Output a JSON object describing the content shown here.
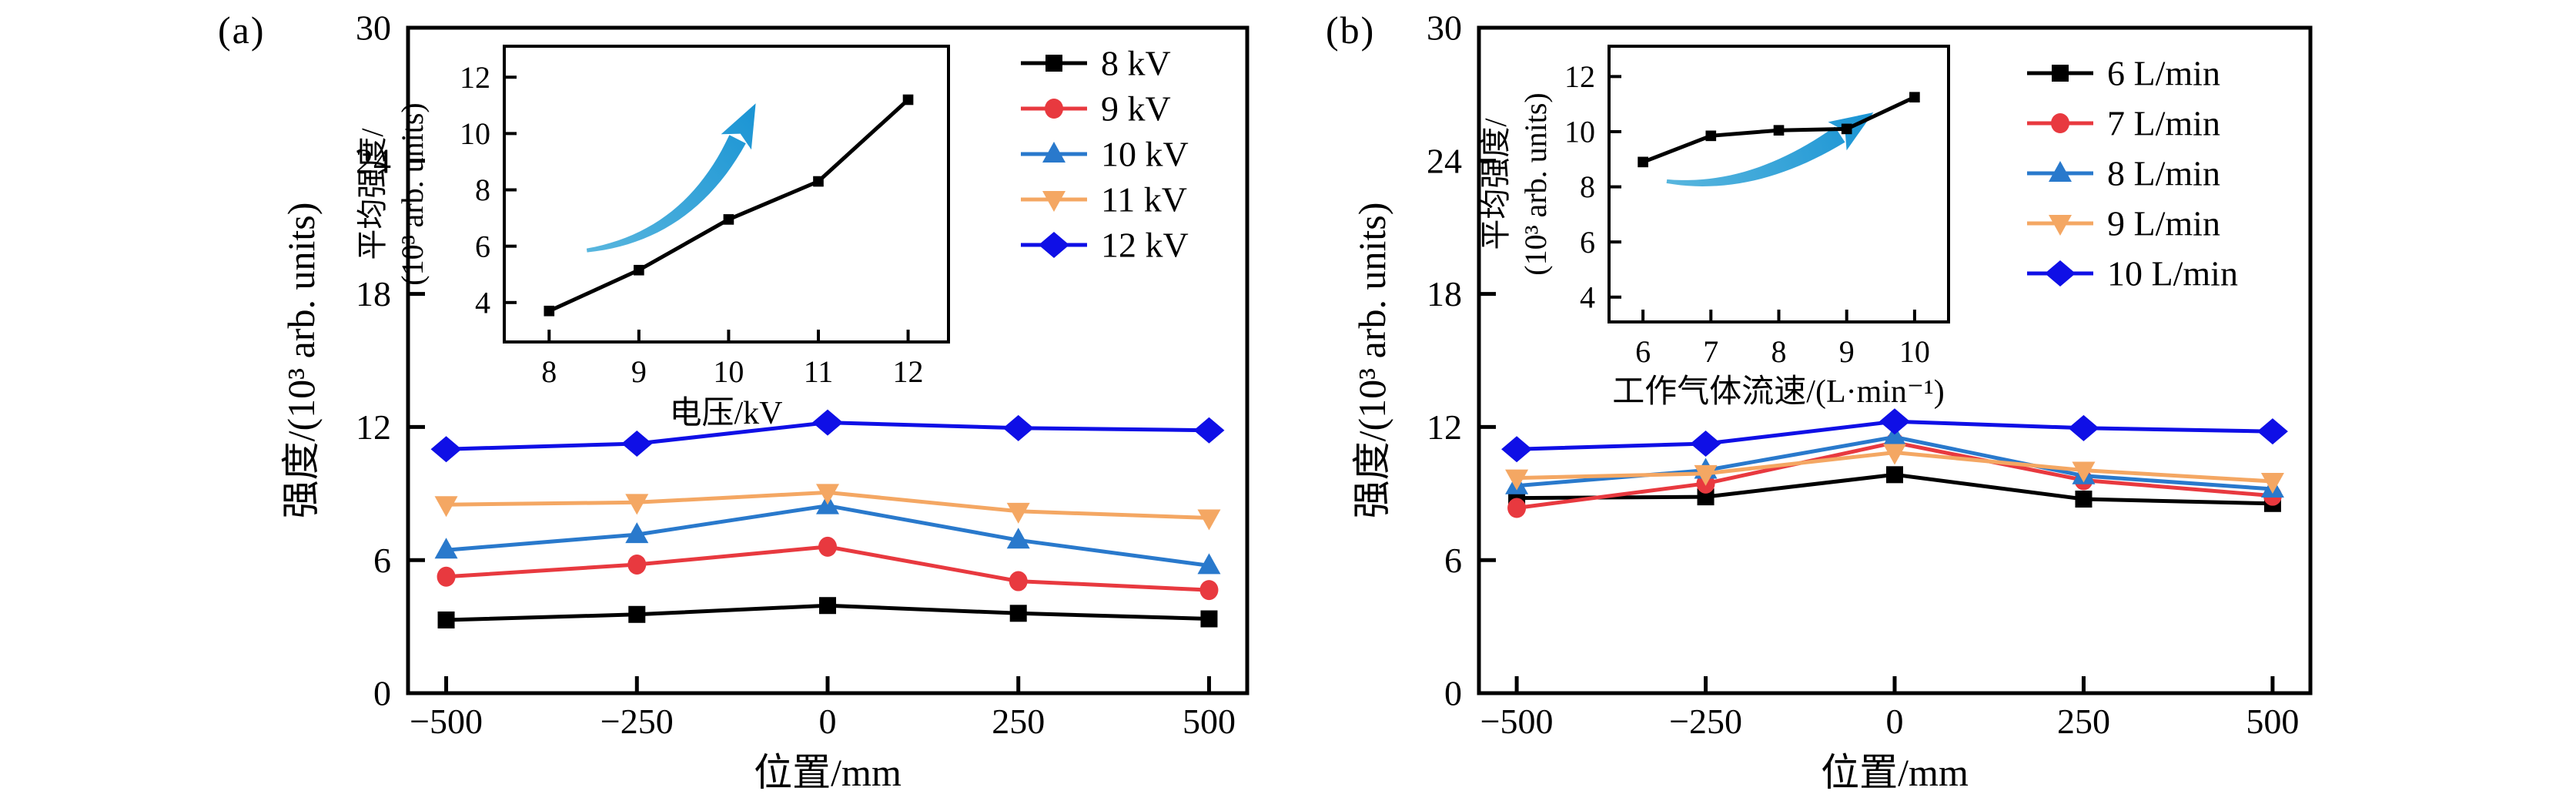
{
  "figure_background": "#ffffff",
  "panel_labels": [
    "(a)",
    "(b)"
  ],
  "colors": {
    "black": "#000000",
    "red": "#e8393f",
    "blue": "#2979cc",
    "orange": "#f4a763",
    "royal_blue": "#0f0fe6",
    "arrow_tail": "#58b6de",
    "arrow_head": "#1a94d4"
  },
  "chart_data": [
    {
      "panel": "(a)",
      "role": "main",
      "type": "line",
      "title": "",
      "xlabel": "位置/mm",
      "ylabel": "强度/(10³ arb. units)",
      "x": [
        -500,
        -250,
        0,
        250,
        500
      ],
      "xticks": [
        -500,
        -250,
        0,
        250,
        500
      ],
      "xtick_labels": [
        "−500",
        "−250",
        "0",
        "250",
        "500"
      ],
      "yticks": [
        0,
        6,
        12,
        18,
        24,
        30
      ],
      "xlim": [
        -550,
        550
      ],
      "ylim": [
        0,
        30
      ],
      "grid": false,
      "legend_position": "top-right",
      "series": [
        {
          "name": "8 kV",
          "marker": "square",
          "color": "#000000",
          "values": [
            3.3,
            3.55,
            3.95,
            3.6,
            3.35
          ]
        },
        {
          "name": "9 kV",
          "marker": "circle",
          "color": "#e8393f",
          "values": [
            5.25,
            5.8,
            6.6,
            5.05,
            4.65
          ]
        },
        {
          "name": "10 kV",
          "marker": "triangle-up",
          "color": "#2979cc",
          "values": [
            6.45,
            7.15,
            8.45,
            6.9,
            5.75
          ]
        },
        {
          "name": "11 kV",
          "marker": "triangle-down",
          "color": "#f4a763",
          "values": [
            8.5,
            8.6,
            9.05,
            8.2,
            7.9
          ]
        },
        {
          "name": "12 kV",
          "marker": "diamond",
          "color": "#0f0fe6",
          "values": [
            11.0,
            11.25,
            12.2,
            11.95,
            11.85
          ]
        }
      ]
    },
    {
      "panel": "(a)",
      "role": "inset",
      "type": "line",
      "title": "",
      "xlabel": "电压/kV",
      "ylabel_lines": [
        "平均强度/",
        "(10³ arb. units)"
      ],
      "x": [
        8,
        9,
        10,
        11,
        12
      ],
      "xticks": [
        8,
        9,
        10,
        11,
        12
      ],
      "yticks": [
        4,
        6,
        8,
        10,
        12
      ],
      "xlim": [
        7.5,
        12.45
      ],
      "ylim": [
        2.6,
        13.1
      ],
      "grid": false,
      "series": [
        {
          "name": "平均强度",
          "marker": "square",
          "color": "#000000",
          "values": [
            3.7,
            5.15,
            6.95,
            8.3,
            11.2
          ]
        }
      ],
      "arrow": {
        "from": [
          8.42,
          5.85
        ],
        "via": [
          9.55,
          6.35
        ],
        "to": [
          10.1,
          9.8
        ],
        "color_tail": "#58b6de",
        "color_head": "#1a94d4"
      }
    },
    {
      "panel": "(b)",
      "role": "main",
      "type": "line",
      "title": "",
      "xlabel": "位置/mm",
      "ylabel": "强度/(10³ arb. units)",
      "x": [
        -500,
        -250,
        0,
        250,
        500
      ],
      "xticks": [
        -500,
        -250,
        0,
        250,
        500
      ],
      "xtick_labels": [
        "−500",
        "−250",
        "0",
        "250",
        "500"
      ],
      "yticks": [
        0,
        6,
        12,
        18,
        24,
        30
      ],
      "xlim": [
        -550,
        550
      ],
      "ylim": [
        0,
        30
      ],
      "grid": false,
      "legend_position": "top-right",
      "series": [
        {
          "name": "6 L/min",
          "marker": "square",
          "color": "#000000",
          "values": [
            8.8,
            8.85,
            9.85,
            8.75,
            8.55
          ]
        },
        {
          "name": "7 L/min",
          "marker": "circle",
          "color": "#e8393f",
          "values": [
            8.35,
            9.45,
            11.3,
            9.6,
            8.9
          ]
        },
        {
          "name": "8 L/min",
          "marker": "triangle-up",
          "color": "#2979cc",
          "values": [
            9.35,
            10.05,
            11.55,
            9.8,
            9.2
          ]
        },
        {
          "name": "9 L/min",
          "marker": "triangle-down",
          "color": "#f4a763",
          "values": [
            9.7,
            9.9,
            10.85,
            10.05,
            9.55
          ]
        },
        {
          "name": "10 L/min",
          "marker": "diamond",
          "color": "#0f0fe6",
          "values": [
            11.0,
            11.25,
            12.25,
            11.95,
            11.8
          ]
        }
      ]
    },
    {
      "panel": "(b)",
      "role": "inset",
      "type": "line",
      "title": "",
      "xlabel": "工作气体流速/(L·min⁻¹)",
      "ylabel_lines": [
        "平均强度/",
        "(10³ arb. units)"
      ],
      "x": [
        6,
        7,
        8,
        9,
        10
      ],
      "xticks": [
        6,
        7,
        8,
        9,
        10
      ],
      "yticks": [
        4,
        6,
        8,
        10,
        12
      ],
      "xlim": [
        5.5,
        10.5
      ],
      "ylim": [
        3.1,
        13.1
      ],
      "grid": false,
      "series": [
        {
          "name": "平均强度",
          "marker": "square",
          "color": "#000000",
          "values": [
            8.9,
            9.85,
            10.05,
            10.1,
            11.25
          ]
        }
      ],
      "arrow": {
        "from": [
          6.35,
          8.2
        ],
        "via": [
          7.6,
          7.8
        ],
        "to": [
          8.9,
          9.9
        ],
        "color_tail": "#58b6de",
        "color_head": "#1a94d4"
      }
    }
  ]
}
